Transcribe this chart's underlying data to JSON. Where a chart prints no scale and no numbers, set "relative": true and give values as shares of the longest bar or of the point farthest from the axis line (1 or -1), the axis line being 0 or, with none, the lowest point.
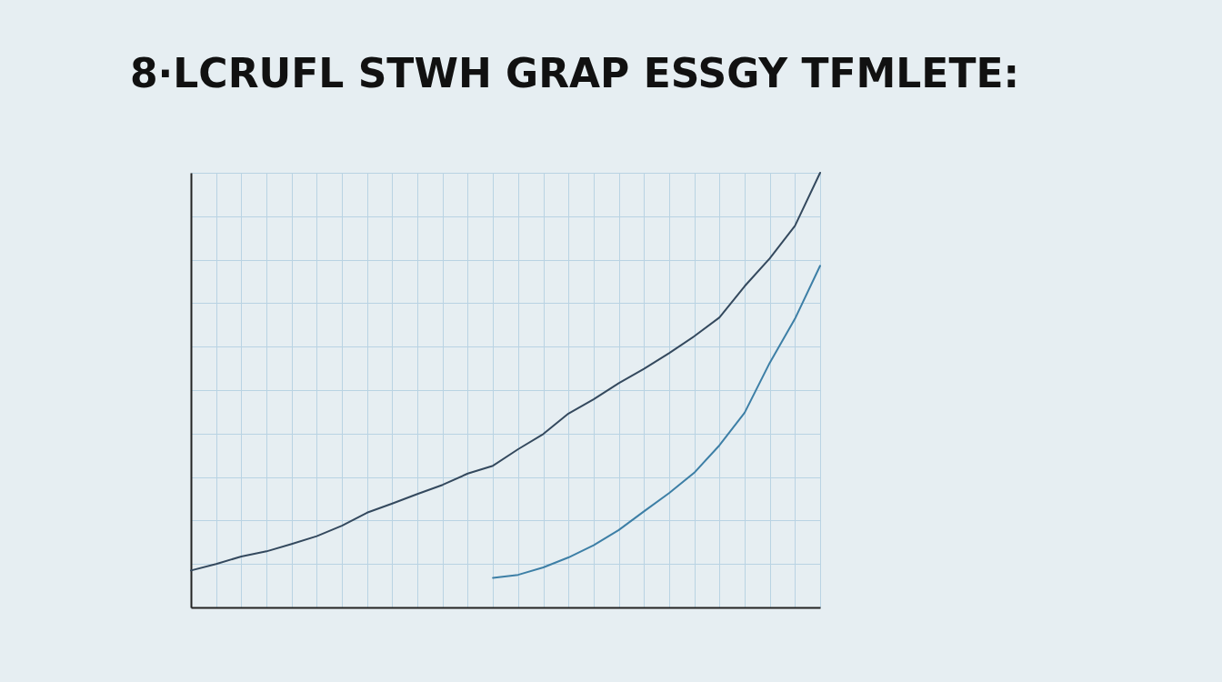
{
  "chart_data": {
    "type": "line",
    "title": "8·LCRUFL STWH GRAP ESSGY TFMLETE:",
    "relative": true,
    "categories": [
      null,
      null,
      null,
      null,
      null,
      null,
      null,
      null,
      null,
      null,
      null,
      null,
      null,
      null,
      null,
      null,
      null,
      null,
      null,
      null,
      null,
      null,
      null,
      null,
      null,
      null
    ],
    "series": [
      {
        "color": "#34495e",
        "values": [
          0.085,
          0.1,
          0.117,
          0.129,
          0.146,
          0.164,
          0.188,
          0.218,
          0.239,
          0.261,
          0.282,
          0.308,
          0.326,
          0.364,
          0.399,
          0.446,
          0.479,
          0.516,
          0.549,
          0.585,
          0.624,
          0.667,
          0.739,
          0.803,
          0.878,
          1
        ]
      },
      {
        "color": "#3d7fa6",
        "values": [
          null,
          null,
          null,
          null,
          null,
          null,
          null,
          null,
          null,
          null,
          null,
          null,
          0.068,
          0.075,
          0.092,
          0.115,
          0.143,
          0.178,
          0.221,
          0.263,
          0.31,
          0.373,
          0.448,
          0.563,
          0.664,
          0.786
        ]
      }
    ],
    "grid": true
  }
}
